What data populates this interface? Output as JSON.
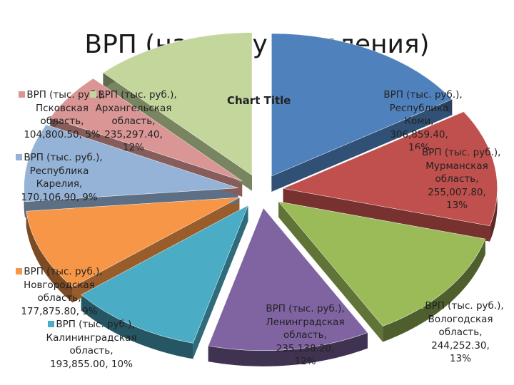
{
  "slide": {
    "title": "ВРП (на душу населения)"
  },
  "chart_data": {
    "type": "pie",
    "style": "exploded-3d",
    "title": "Chart Title",
    "series_name": "ВРП (тыс. руб.)",
    "slices": [
      {
        "category": "Республика Коми",
        "value": 306859.4,
        "percent": "16%",
        "color": "#4f81bd",
        "label": [
          "ВРП (тыс. руб.),",
          "Республика",
          "Коми,",
          "306,859.40,",
          "16%"
        ]
      },
      {
        "category": "Мурманская область",
        "value": 255007.8,
        "percent": "13%",
        "color": "#c0504d",
        "label": [
          "ВРП (тыс. руб.),",
          "Мурманская",
          "область,",
          "255,007.80,",
          "13%"
        ]
      },
      {
        "category": "Вологодская область",
        "value": 244252.3,
        "percent": "13%",
        "color": "#9bbb59",
        "label": [
          "ВРП (тыс. руб.),",
          "Вологодская",
          "область,",
          "244,252.30,",
          "13%"
        ]
      },
      {
        "category": "Ленинградская область",
        "value": 235138.2,
        "percent": "12%",
        "color": "#8064a2",
        "label": [
          "ВРП (тыс. руб.),",
          "Ленинградская",
          "область,",
          "235,138.20,",
          "12%"
        ]
      },
      {
        "category": "Калининградская область",
        "value": 193855.0,
        "percent": "10%",
        "color": "#4bacc6",
        "label": [
          "ВРП (тыс. руб.),",
          "Калининградская",
          "область,",
          "193,855.00, 10%"
        ]
      },
      {
        "category": "Новгородская область",
        "value": 177875.8,
        "percent": "9%",
        "color": "#f79646",
        "label": [
          "ВРП (тыс. руб.),",
          "Новгородская",
          "область,",
          "177,875.80, 9%"
        ]
      },
      {
        "category": "Республика Карелия",
        "value": 170106.9,
        "percent": "9%",
        "color": "#95b3d7",
        "label": [
          "ВРП (тыс. руб.),",
          "Республика",
          "Карелия,",
          "170,106.90, 9%"
        ]
      },
      {
        "category": "Псковская область",
        "value": 104800.5,
        "percent": "5%",
        "color": "#d99694",
        "label": [
          "ВРП (тыс. руб.),",
          "Псковская",
          "область,",
          "104,800.50, 5%"
        ]
      },
      {
        "category": "Архангельская область",
        "value": 235297.4,
        "percent": "12%",
        "color": "#c3d69b",
        "label": [
          "ВРП (тыс. руб.),",
          "Архангельская",
          "область,",
          "235,297.40,",
          "12%"
        ]
      }
    ]
  }
}
